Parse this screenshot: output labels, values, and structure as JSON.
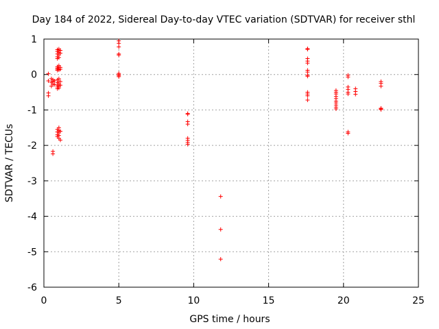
{
  "chart_data": {
    "type": "scatter",
    "title": "Day 184 of 2022, Sidereal Day-to-day VTEC variation (SDTVAR) for receiver sthl",
    "xlabel": "GPS time / hours",
    "ylabel": "SDTVAR / TECUs",
    "xlim": [
      0,
      25
    ],
    "ylim": [
      -6,
      1
    ],
    "xticks": [
      0,
      5,
      10,
      15,
      20,
      25
    ],
    "yticks": [
      1,
      0,
      -1,
      -2,
      -3,
      -4,
      -5,
      -6
    ],
    "grid": true,
    "marker": "+",
    "marker_color": "#ff0000",
    "series": [
      {
        "name": "SDTVAR",
        "points": [
          [
            0.3,
            0.02
          ],
          [
            0.3,
            -0.18
          ],
          [
            0.3,
            -0.52
          ],
          [
            0.3,
            -0.6
          ],
          [
            0.5,
            -0.12
          ],
          [
            0.5,
            -0.22
          ],
          [
            0.5,
            -0.33
          ],
          [
            0.6,
            -0.15
          ],
          [
            0.6,
            -0.2
          ],
          [
            0.6,
            -0.27
          ],
          [
            0.6,
            -2.17
          ],
          [
            0.6,
            -2.24
          ],
          [
            0.7,
            -0.18
          ],
          [
            0.7,
            -0.28
          ],
          [
            0.9,
            0.7
          ],
          [
            0.9,
            0.65
          ],
          [
            0.9,
            0.58
          ],
          [
            0.9,
            0.5
          ],
          [
            0.9,
            0.45
          ],
          [
            0.9,
            0.22
          ],
          [
            0.9,
            0.18
          ],
          [
            0.9,
            0.15
          ],
          [
            0.9,
            0.12
          ],
          [
            0.9,
            -0.15
          ],
          [
            0.9,
            -0.23
          ],
          [
            0.9,
            -0.3
          ],
          [
            0.9,
            -0.35
          ],
          [
            0.9,
            -0.4
          ],
          [
            0.9,
            -1.55
          ],
          [
            0.9,
            -1.62
          ],
          [
            0.9,
            -1.7
          ],
          [
            0.9,
            -1.75
          ],
          [
            1.0,
            0.72
          ],
          [
            1.0,
            0.67
          ],
          [
            1.0,
            0.62
          ],
          [
            1.0,
            0.55
          ],
          [
            1.0,
            0.48
          ],
          [
            1.0,
            0.25
          ],
          [
            1.0,
            0.2
          ],
          [
            1.0,
            0.16
          ],
          [
            1.0,
            0.13
          ],
          [
            1.0,
            -0.12
          ],
          [
            1.0,
            -0.2
          ],
          [
            1.0,
            -0.27
          ],
          [
            1.0,
            -0.33
          ],
          [
            1.0,
            -0.38
          ],
          [
            1.0,
            -1.5
          ],
          [
            1.0,
            -1.58
          ],
          [
            1.0,
            -1.65
          ],
          [
            1.0,
            -1.72
          ],
          [
            1.0,
            -1.8
          ],
          [
            1.1,
            0.68
          ],
          [
            1.1,
            0.6
          ],
          [
            1.1,
            0.2
          ],
          [
            1.1,
            0.15
          ],
          [
            1.1,
            -0.2
          ],
          [
            1.1,
            -0.3
          ],
          [
            1.1,
            -1.6
          ],
          [
            1.1,
            -1.85
          ],
          [
            5.0,
            0.95
          ],
          [
            5.0,
            0.88
          ],
          [
            5.0,
            0.78
          ],
          [
            5.0,
            0.58
          ],
          [
            5.0,
            0.55
          ],
          [
            5.0,
            0.03
          ],
          [
            5.0,
            0.0
          ],
          [
            5.0,
            -0.03
          ],
          [
            5.0,
            -0.06
          ],
          [
            9.6,
            -1.1
          ],
          [
            9.6,
            -1.12
          ],
          [
            9.6,
            -1.33
          ],
          [
            9.6,
            -1.4
          ],
          [
            9.6,
            -1.8
          ],
          [
            9.6,
            -1.86
          ],
          [
            9.6,
            -1.92
          ],
          [
            9.6,
            -1.97
          ],
          [
            11.8,
            -3.44
          ],
          [
            11.8,
            -4.37
          ],
          [
            11.8,
            -5.21
          ],
          [
            17.6,
            0.73
          ],
          [
            17.6,
            0.71
          ],
          [
            17.6,
            0.45
          ],
          [
            17.6,
            0.38
          ],
          [
            17.6,
            0.32
          ],
          [
            17.6,
            0.12
          ],
          [
            17.6,
            0.07
          ],
          [
            17.6,
            -0.02
          ],
          [
            17.6,
            -0.05
          ],
          [
            17.6,
            -0.5
          ],
          [
            17.6,
            -0.55
          ],
          [
            17.6,
            -0.6
          ],
          [
            17.6,
            -0.72
          ],
          [
            19.5,
            -0.45
          ],
          [
            19.5,
            -0.5
          ],
          [
            19.5,
            -0.55
          ],
          [
            19.5,
            -0.62
          ],
          [
            19.5,
            -0.68
          ],
          [
            19.5,
            -0.75
          ],
          [
            19.5,
            -0.8
          ],
          [
            19.5,
            -0.86
          ],
          [
            19.5,
            -0.92
          ],
          [
            19.5,
            -0.97
          ],
          [
            20.3,
            -0.02
          ],
          [
            20.3,
            -0.07
          ],
          [
            20.3,
            -0.35
          ],
          [
            20.3,
            -0.42
          ],
          [
            20.3,
            -0.5
          ],
          [
            20.3,
            -0.55
          ],
          [
            20.3,
            -1.62
          ],
          [
            20.3,
            -1.66
          ],
          [
            20.8,
            -0.4
          ],
          [
            20.8,
            -0.48
          ],
          [
            20.8,
            -0.56
          ],
          [
            22.5,
            -0.2
          ],
          [
            22.5,
            -0.25
          ],
          [
            22.5,
            -0.33
          ],
          [
            22.5,
            -0.95
          ],
          [
            22.5,
            -0.97
          ],
          [
            22.5,
            -0.99
          ]
        ]
      }
    ]
  }
}
